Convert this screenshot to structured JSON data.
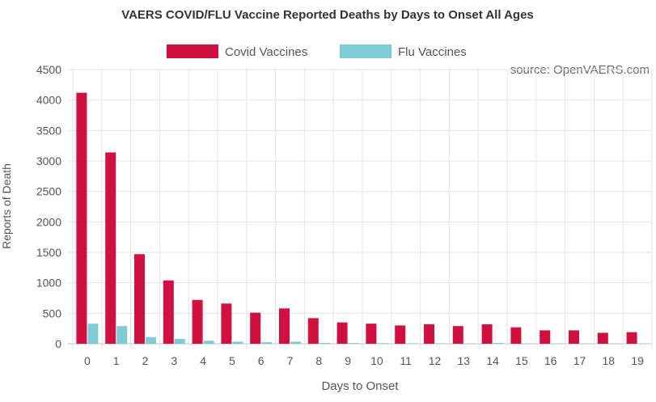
{
  "chart_data": {
    "type": "bar",
    "title": "VAERS COVID/FLU Vaccine Reported Deaths by Days to Onset All Ages",
    "source_note": "source: OpenVAERS.com",
    "xlabel": "Days to Onset",
    "ylabel": "Reports of Death",
    "ylim": [
      0,
      4500
    ],
    "yticks": [
      0,
      500,
      1000,
      1500,
      2000,
      2500,
      3000,
      3500,
      4000,
      4500
    ],
    "grid": true,
    "legend_position": "top-center",
    "categories": [
      "0",
      "1",
      "2",
      "3",
      "4",
      "5",
      "6",
      "7",
      "8",
      "9",
      "10",
      "11",
      "12",
      "13",
      "14",
      "15",
      "16",
      "17",
      "18",
      "19"
    ],
    "series": [
      {
        "name": "Covid Vaccines",
        "color": "#d0103f",
        "values": [
          4120,
          3140,
          1470,
          1040,
          720,
          660,
          510,
          580,
          420,
          350,
          330,
          300,
          320,
          290,
          320,
          270,
          220,
          220,
          180,
          190
        ]
      },
      {
        "name": "Flu Vaccines",
        "color": "#7fcbd6",
        "values": [
          330,
          290,
          110,
          80,
          50,
          35,
          25,
          35,
          15,
          12,
          10,
          8,
          8,
          6,
          15,
          6,
          5,
          5,
          4,
          4
        ]
      }
    ]
  }
}
